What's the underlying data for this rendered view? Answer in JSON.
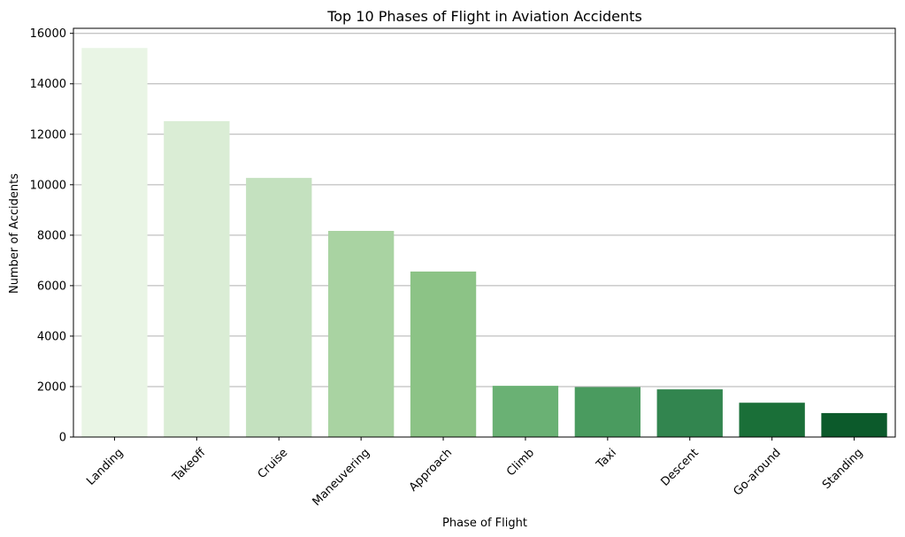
{
  "chart_data": {
    "type": "bar",
    "title": "Top 10 Phases of Flight in Aviation Accidents",
    "xlabel": "Phase of Flight",
    "ylabel": "Number of Accidents",
    "categories": [
      "Landing",
      "Takeoff",
      "Cruise",
      "Maneuvering",
      "Approach",
      "Climb",
      "Taxi",
      "Descent",
      "Go-around",
      "Standing"
    ],
    "values": [
      15420,
      12520,
      10270,
      8170,
      6560,
      2030,
      1980,
      1890,
      1360,
      950
    ],
    "colors": [
      "#e9f5e5",
      "#daedd5",
      "#c4e1bf",
      "#a9d3a2",
      "#8cc386",
      "#6ab174",
      "#4a9b5f",
      "#32854f",
      "#1a6f38",
      "#0c5a2b"
    ],
    "ylim": [
      0,
      16200
    ],
    "yticks": [
      0,
      2000,
      4000,
      6000,
      8000,
      10000,
      12000,
      14000,
      16000
    ],
    "grid": "horizontal",
    "legend": "none"
  }
}
